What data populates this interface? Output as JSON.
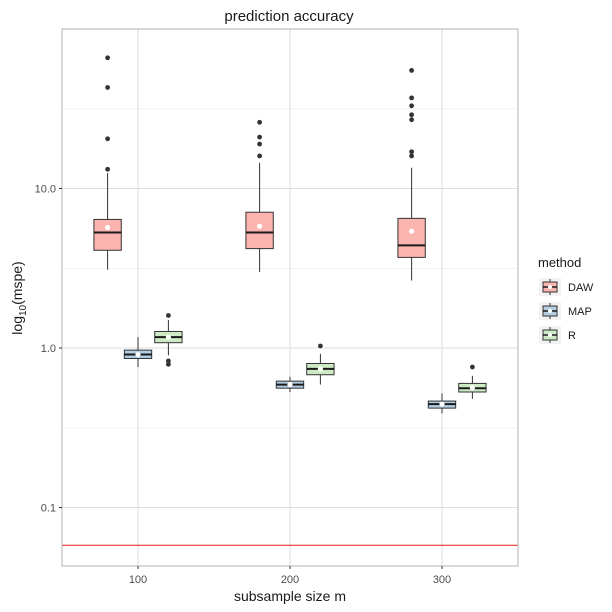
{
  "chart_data": {
    "type": "box",
    "title": "prediction accuracy",
    "xlabel": "subsample size m",
    "ylabel_main": "log",
    "ylabel_sub": "10",
    "ylabel_rest": "(mspe)",
    "y_scale": "log10",
    "ylim": [
      0.043,
      100
    ],
    "y_ticks": [
      0.1,
      1.0,
      10.0
    ],
    "y_tick_labels": [
      "0.1",
      "1.0",
      "10.0"
    ],
    "y_minor_ticks": [
      0.316,
      3.16,
      31.6
    ],
    "categories": [
      "100",
      "200",
      "300"
    ],
    "grid": true,
    "legend_title": "method",
    "legend_position": "right",
    "reference_line": {
      "y": 0.058,
      "color": "#e31a1c"
    },
    "series": [
      {
        "name": "DAW",
        "fill": "#fbb4ae",
        "boxes": [
          {
            "min": 3.1,
            "q1": 4.1,
            "median": 5.3,
            "q3": 6.4,
            "max": 12.5,
            "mean": 5.7,
            "outliers": [
              13.2,
              20.5,
              43,
              66
            ]
          },
          {
            "min": 3.0,
            "q1": 4.2,
            "median": 5.3,
            "q3": 7.1,
            "max": 14.5,
            "mean": 5.8,
            "outliers": [
              16,
              19,
              21,
              26
            ]
          },
          {
            "min": 2.65,
            "q1": 3.7,
            "median": 4.4,
            "q3": 6.5,
            "max": 13.5,
            "mean": 5.4,
            "outliers": [
              16,
              17,
              27,
              29,
              33,
              37,
              55
            ]
          }
        ]
      },
      {
        "name": "MAP",
        "fill": "#b3cde3",
        "boxes": [
          {
            "min": 0.76,
            "q1": 0.86,
            "median": 0.91,
            "q3": 0.97,
            "max": 1.17,
            "mean": 0.91,
            "outliers": []
          },
          {
            "min": 0.53,
            "q1": 0.56,
            "median": 0.59,
            "q3": 0.62,
            "max": 0.66,
            "mean": 0.59,
            "outliers": []
          },
          {
            "min": 0.39,
            "q1": 0.42,
            "median": 0.445,
            "q3": 0.465,
            "max": 0.52,
            "mean": 0.445,
            "outliers": []
          }
        ]
      },
      {
        "name": "R",
        "fill": "#ccebc5",
        "boxes": [
          {
            "min": 0.9,
            "q1": 1.08,
            "median": 1.17,
            "q3": 1.27,
            "max": 1.5,
            "mean": 1.17,
            "outliers": [
              0.79,
              0.83,
              1.6
            ]
          },
          {
            "min": 0.59,
            "q1": 0.68,
            "median": 0.74,
            "q3": 0.8,
            "max": 0.92,
            "mean": 0.74,
            "outliers": [
              1.03
            ]
          },
          {
            "min": 0.48,
            "q1": 0.53,
            "median": 0.56,
            "q3": 0.6,
            "max": 0.67,
            "mean": 0.565,
            "outliers": [
              0.76
            ]
          }
        ]
      }
    ]
  }
}
